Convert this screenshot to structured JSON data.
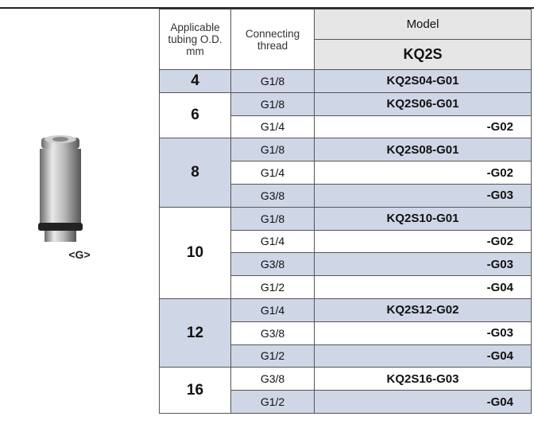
{
  "image_label": "<G>",
  "table": {
    "header": {
      "tubing": "Applicable tubing O.D. mm",
      "thread": "Connecting thread",
      "model": "Model",
      "series": "KQ2S"
    },
    "groups": [
      {
        "od": "4",
        "rows": [
          {
            "thread": "G1/8",
            "model": "KQ2S04-G01"
          }
        ]
      },
      {
        "od": "6",
        "rows": [
          {
            "thread": "G1/8",
            "model": "KQ2S06-G01"
          },
          {
            "thread": "G1/4",
            "model": "-G02"
          }
        ]
      },
      {
        "od": "8",
        "rows": [
          {
            "thread": "G1/8",
            "model": "KQ2S08-G01"
          },
          {
            "thread": "G1/4",
            "model": "-G02"
          },
          {
            "thread": "G3/8",
            "model": "-G03"
          }
        ]
      },
      {
        "od": "10",
        "rows": [
          {
            "thread": "G1/8",
            "model": "KQ2S10-G01"
          },
          {
            "thread": "G1/4",
            "model": "-G02"
          },
          {
            "thread": "G3/8",
            "model": "-G03"
          },
          {
            "thread": "G1/2",
            "model": "-G04"
          }
        ]
      },
      {
        "od": "12",
        "rows": [
          {
            "thread": "G1/4",
            "model": "KQ2S12-G02"
          },
          {
            "thread": "G3/8",
            "model": "-G03"
          },
          {
            "thread": "G1/2",
            "model": "-G04"
          }
        ]
      },
      {
        "od": "16",
        "rows": [
          {
            "thread": "G3/8",
            "model": "KQ2S16-G03"
          },
          {
            "thread": "G1/2",
            "model": "-G04"
          }
        ]
      }
    ]
  }
}
